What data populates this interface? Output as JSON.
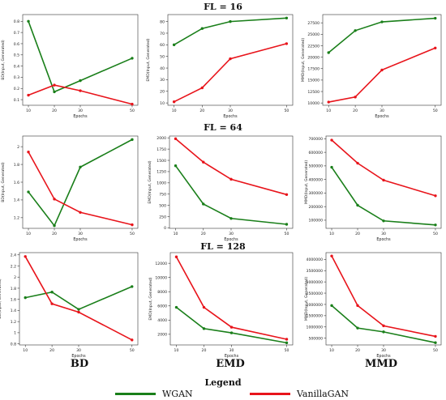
{
  "row_titles": [
    "FL = 16",
    "FL = 64",
    "FL = 128"
  ],
  "column_labels": [
    "BD",
    "EMD",
    "MMD"
  ],
  "legend": {
    "title": "Legend",
    "items": [
      {
        "label": "WGAN",
        "color": "#1a7f1a"
      },
      {
        "label": "VanillaGAN",
        "color": "#e8141b"
      }
    ]
  },
  "chart_data": [
    {
      "type": "line",
      "x": [
        10,
        20,
        30,
        50
      ],
      "xlabel": "Epochs",
      "ylabel": "BD(Input, Generated)",
      "yticks": [
        0.1,
        0.2,
        0.3,
        0.4,
        0.5,
        0.6,
        0.7,
        0.8
      ],
      "ylim": [
        0.05,
        0.86
      ],
      "series": [
        {
          "name": "WGAN",
          "values": [
            0.8,
            0.17,
            0.27,
            0.47
          ]
        },
        {
          "name": "VanillaGAN",
          "values": [
            0.14,
            0.23,
            0.18,
            0.06
          ]
        }
      ]
    },
    {
      "type": "line",
      "x": [
        10,
        20,
        30,
        50
      ],
      "xlabel": "Epochs",
      "ylabel": "EMD(Input, Generated)",
      "yticks": [
        10,
        20,
        30,
        40,
        50,
        60,
        70,
        80
      ],
      "ylim": [
        8,
        86
      ],
      "series": [
        {
          "name": "WGAN",
          "values": [
            60,
            74,
            80,
            83
          ]
        },
        {
          "name": "VanillaGAN",
          "values": [
            11,
            23,
            48,
            61
          ]
        }
      ]
    },
    {
      "type": "line",
      "x": [
        10,
        20,
        30,
        50
      ],
      "xlabel": "Epochs",
      "ylabel": "MMD(Input, Generated)",
      "yticks": [
        10000,
        12500,
        15000,
        17500,
        20000,
        22500,
        25000,
        27500
      ],
      "ylim": [
        9500,
        29300
      ],
      "series": [
        {
          "name": "WGAN",
          "values": [
            21000,
            25800,
            27700,
            28500
          ]
        },
        {
          "name": "VanillaGAN",
          "values": [
            10200,
            11300,
            17200,
            22000
          ]
        }
      ]
    },
    {
      "type": "line",
      "x": [
        10,
        20,
        30,
        50
      ],
      "xlabel": "Epochs",
      "ylabel": "BD(Input, Generated)",
      "yticks": [
        1.2,
        1.4,
        1.6,
        1.8,
        2.0
      ],
      "ylim": [
        1.08,
        2.12
      ],
      "series": [
        {
          "name": "WGAN",
          "values": [
            1.49,
            1.11,
            1.77,
            2.08
          ]
        },
        {
          "name": "VanillaGAN",
          "values": [
            1.94,
            1.41,
            1.26,
            1.12
          ]
        }
      ]
    },
    {
      "type": "line",
      "x": [
        10,
        20,
        30,
        50
      ],
      "xlabel": "Epochs",
      "ylabel": "EMD(Input, Generated)",
      "yticks": [
        0,
        250,
        500,
        750,
        1000,
        1250,
        1500,
        1750,
        2000
      ],
      "ylim": [
        -10,
        2040
      ],
      "series": [
        {
          "name": "WGAN",
          "values": [
            1380,
            530,
            210,
            80
          ]
        },
        {
          "name": "VanillaGAN",
          "values": [
            1980,
            1460,
            1080,
            740
          ]
        }
      ]
    },
    {
      "type": "line",
      "x": [
        10,
        20,
        30,
        50
      ],
      "xlabel": "Epochs",
      "ylabel": "MMD(Input, Generated)",
      "yticks": [
        100000,
        200000,
        300000,
        400000,
        500000,
        600000,
        700000
      ],
      "ylim": [
        40000,
        720000
      ],
      "series": [
        {
          "name": "WGAN",
          "values": [
            490000,
            210000,
            95000,
            65000
          ]
        },
        {
          "name": "VanillaGAN",
          "values": [
            690000,
            520000,
            395000,
            280000
          ]
        }
      ]
    },
    {
      "type": "line",
      "x": [
        10,
        20,
        30,
        50
      ],
      "xlabel": "Epochs",
      "ylabel": "BD(Input, Generated)",
      "yticks": [
        0.8,
        1.0,
        1.2,
        1.4,
        1.6,
        1.8,
        2.0,
        2.2,
        2.4
      ],
      "ylim": [
        0.78,
        2.44
      ],
      "series": [
        {
          "name": "WGAN",
          "values": [
            1.63,
            1.73,
            1.42,
            1.83
          ]
        },
        {
          "name": "VanillaGAN",
          "values": [
            2.37,
            1.52,
            1.37,
            0.87
          ]
        }
      ]
    },
    {
      "type": "line",
      "x": [
        10,
        20,
        30,
        50
      ],
      "xlabel": "Epochs",
      "ylabel": "EMD(Input, Generated)",
      "yticks": [
        2000,
        4000,
        6000,
        8000,
        10000,
        12000
      ],
      "ylim": [
        500,
        13500
      ],
      "series": [
        {
          "name": "WGAN",
          "values": [
            5800,
            2800,
            2200,
            800
          ]
        },
        {
          "name": "VanillaGAN",
          "values": [
            12900,
            5800,
            3000,
            1300
          ]
        }
      ]
    },
    {
      "type": "line",
      "x": [
        10,
        20,
        30,
        50
      ],
      "xlabel": "Epochs",
      "ylabel": "MMD(Input, Generated)",
      "yticks": [
        500000,
        1000000,
        1500000,
        2000000,
        2500000,
        3000000,
        3500000,
        4000000
      ],
      "ylim": [
        200000,
        4300000
      ],
      "series": [
        {
          "name": "WGAN",
          "values": [
            1950000,
            950000,
            780000,
            300000
          ]
        },
        {
          "name": "VanillaGAN",
          "values": [
            4150000,
            1950000,
            1050000,
            580000
          ]
        }
      ]
    }
  ]
}
